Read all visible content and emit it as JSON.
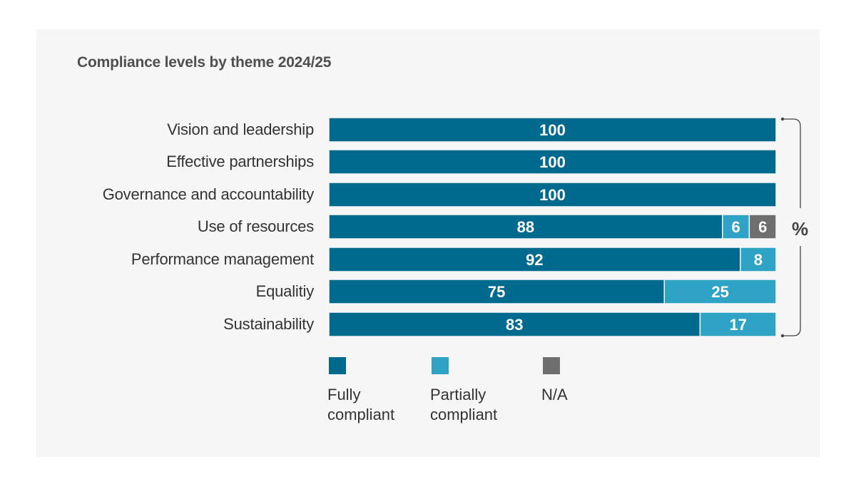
{
  "chart_data": {
    "type": "bar",
    "orientation": "horizontal",
    "stacked": true,
    "title": "Compliance levels by theme 2024/25",
    "unit_label": "%",
    "xlabel": "",
    "ylabel": "",
    "xlim": [
      0,
      100
    ],
    "grid": false,
    "legend_position": "bottom-left",
    "categories": [
      "Vision and leadership",
      "Effective partnerships",
      "Governance and accountability",
      "Use of resources",
      "Performance management",
      "Equalitiy",
      "Sustainability"
    ],
    "series": [
      {
        "name": "Fully compliant",
        "color": "#006a8e",
        "values": [
          100,
          100,
          100,
          88,
          92,
          75,
          83
        ]
      },
      {
        "name": "Partially compliant",
        "color": "#2ea3c6",
        "values": [
          0,
          0,
          0,
          6,
          8,
          25,
          17
        ]
      },
      {
        "name": "N/A",
        "color": "#6f6f6f",
        "values": [
          0,
          0,
          0,
          6,
          0,
          0,
          0
        ]
      }
    ]
  },
  "legend": [
    {
      "line1": "Fully",
      "line2": "compliant",
      "color": "#006a8e",
      "icon": "square-swatch"
    },
    {
      "line1": "Partially",
      "line2": "compliant",
      "color": "#2ea3c6",
      "icon": "square-swatch"
    },
    {
      "line1": "N/A",
      "line2": "",
      "color": "#6f6f6f",
      "icon": "square-swatch"
    }
  ]
}
